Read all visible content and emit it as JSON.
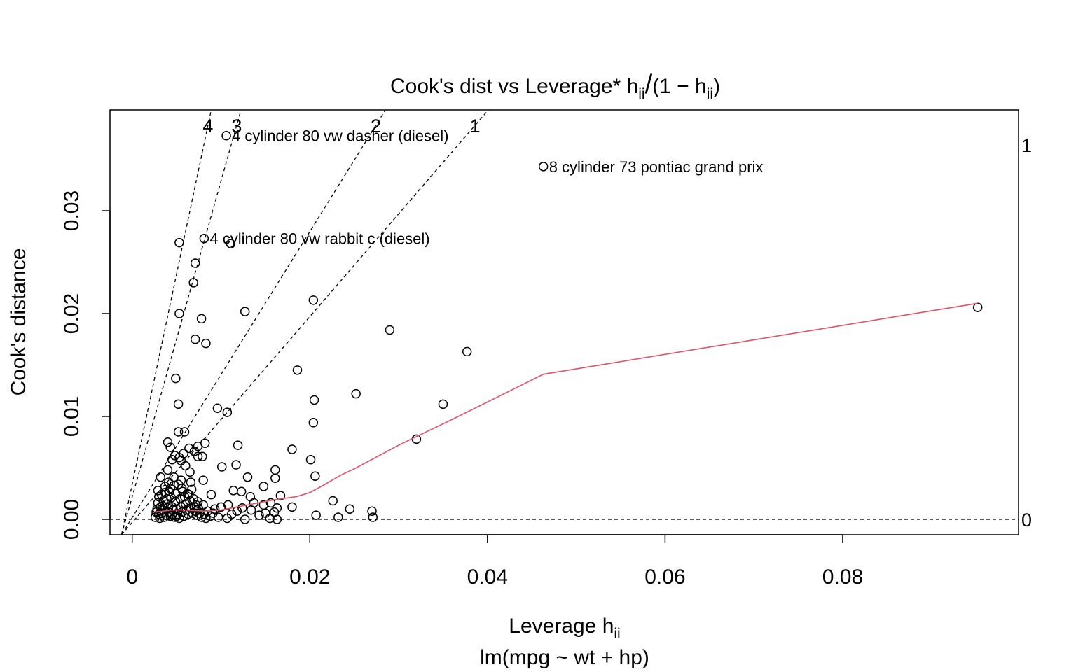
{
  "chart_data": {
    "type": "scatter",
    "title_main": "Cook's dist vs Leverage* ",
    "title_h": "h",
    "title_ii": "ii",
    "title_slash": "/",
    "title_paren_open": "(1 − h",
    "title_ii_2": "ii",
    "title_paren_close": ")",
    "xlabel_text": "Leverage  h",
    "xlabel_sub": "ii",
    "ylabel": "Cook's distance",
    "subtitle": "lm(mpg ~ wt + hp)",
    "xlim": [
      -0.0025,
      0.0998
    ],
    "ylim": [
      -0.0015,
      0.0398
    ],
    "x_ticks": [
      0,
      0.02,
      0.04,
      0.06,
      0.08
    ],
    "x_tick_labels": [
      "0",
      "0.02",
      "0.04",
      "0.06",
      "0.08"
    ],
    "y_ticks": [
      0.0,
      0.01,
      0.02,
      0.03
    ],
    "y_tick_labels": [
      "0.00",
      "0.01",
      "0.02",
      "0.03"
    ],
    "right_axis_labels": [
      {
        "label": "0",
        "y": 0.0
      },
      {
        "label": "1",
        "y": 0.0364
      }
    ],
    "contours": [
      {
        "label": "4",
        "slope": 4.09
      },
      {
        "label": "3",
        "slope": 3.07
      },
      {
        "label": "2",
        "slope": 1.39
      },
      {
        "label": "1",
        "slope": 1.0
      }
    ],
    "points": [
      [
        0.0106,
        0.0373
      ],
      [
        0.0463,
        0.0343
      ],
      [
        0.0081,
        0.0273
      ],
      [
        0.0053,
        0.0269
      ],
      [
        0.0111,
        0.0268
      ],
      [
        0.0071,
        0.0249
      ],
      [
        0.0069,
        0.023
      ],
      [
        0.0204,
        0.0213
      ],
      [
        0.0952,
        0.0206
      ],
      [
        0.0127,
        0.0202
      ],
      [
        0.0053,
        0.02
      ],
      [
        0.0078,
        0.0195
      ],
      [
        0.029,
        0.0184
      ],
      [
        0.0071,
        0.0175
      ],
      [
        0.0083,
        0.0171
      ],
      [
        0.0377,
        0.0163
      ],
      [
        0.0186,
        0.0145
      ],
      [
        0.0049,
        0.0137
      ],
      [
        0.0252,
        0.0122
      ],
      [
        0.0205,
        0.0116
      ],
      [
        0.0052,
        0.0112
      ],
      [
        0.035,
        0.0112
      ],
      [
        0.0096,
        0.0108
      ],
      [
        0.0107,
        0.0104
      ],
      [
        0.0204,
        0.0094
      ],
      [
        0.0052,
        0.0085
      ],
      [
        0.0059,
        0.0085
      ],
      [
        0.032,
        0.0078
      ],
      [
        0.004,
        0.0075
      ],
      [
        0.0082,
        0.0074
      ],
      [
        0.0074,
        0.0071
      ],
      [
        0.0119,
        0.0072
      ],
      [
        0.0043,
        0.007
      ],
      [
        0.0064,
        0.0069
      ],
      [
        0.018,
        0.0068
      ],
      [
        0.007,
        0.0066
      ],
      [
        0.0058,
        0.0064
      ],
      [
        0.0048,
        0.0062
      ],
      [
        0.0053,
        0.006
      ],
      [
        0.0074,
        0.0061
      ],
      [
        0.0079,
        0.0061
      ],
      [
        0.0201,
        0.0058
      ],
      [
        0.0045,
        0.0058
      ],
      [
        0.0055,
        0.0057
      ],
      [
        0.0117,
        0.0053
      ],
      [
        0.0101,
        0.0051
      ],
      [
        0.006,
        0.0052
      ],
      [
        0.004,
        0.0048
      ],
      [
        0.0161,
        0.0048
      ],
      [
        0.0065,
        0.0046
      ],
      [
        0.0206,
        0.0042
      ],
      [
        0.0161,
        0.004
      ],
      [
        0.013,
        0.0041
      ],
      [
        0.0032,
        0.0041
      ],
      [
        0.0047,
        0.0041
      ],
      [
        0.0055,
        0.0038
      ],
      [
        0.008,
        0.0038
      ],
      [
        0.0066,
        0.0036
      ],
      [
        0.0041,
        0.0036
      ],
      [
        0.0148,
        0.0032
      ],
      [
        0.0037,
        0.0032
      ],
      [
        0.0043,
        0.003
      ],
      [
        0.0056,
        0.003
      ],
      [
        0.0114,
        0.0028
      ],
      [
        0.0123,
        0.0027
      ],
      [
        0.0029,
        0.0028
      ],
      [
        0.0133,
        0.0022
      ],
      [
        0.0167,
        0.0023
      ],
      [
        0.0089,
        0.0024
      ],
      [
        0.0049,
        0.0025
      ],
      [
        0.0033,
        0.0024
      ],
      [
        0.0226,
        0.0018
      ],
      [
        0.0148,
        0.0014
      ],
      [
        0.0156,
        0.0016
      ],
      [
        0.018,
        0.0012
      ],
      [
        0.0108,
        0.0014
      ],
      [
        0.0163,
        0.0011
      ],
      [
        0.0245,
        0.001
      ],
      [
        0.027,
        0.0008
      ],
      [
        0.0093,
        0.001
      ],
      [
        0.0134,
        0.0009
      ],
      [
        0.0118,
        0.0008
      ],
      [
        0.016,
        0.0007
      ],
      [
        0.0207,
        0.0004
      ],
      [
        0.0143,
        0.0004
      ],
      [
        0.0232,
        0.0002
      ],
      [
        0.0271,
        0.0002
      ],
      [
        0.0155,
        0.0001
      ],
      [
        0.0127,
        0.0
      ],
      [
        0.0107,
        0.0001
      ],
      [
        0.0163,
        0.0
      ],
      [
        0.0097,
        0.0002
      ],
      [
        0.003,
        0.0022
      ],
      [
        0.0035,
        0.0018
      ],
      [
        0.004,
        0.0015
      ],
      [
        0.0045,
        0.0012
      ],
      [
        0.005,
        0.001
      ],
      [
        0.0055,
        0.0012
      ],
      [
        0.006,
        0.0015
      ],
      [
        0.0065,
        0.0018
      ],
      [
        0.007,
        0.0012
      ],
      [
        0.0075,
        0.001
      ],
      [
        0.008,
        0.0014
      ],
      [
        0.0085,
        0.0008
      ],
      [
        0.0028,
        0.001
      ],
      [
        0.0033,
        0.0006
      ],
      [
        0.0038,
        0.0004
      ],
      [
        0.0043,
        0.0003
      ],
      [
        0.0048,
        0.0002
      ],
      [
        0.0053,
        0.0001
      ],
      [
        0.0058,
        0.0003
      ],
      [
        0.0063,
        0.0005
      ],
      [
        0.0068,
        0.0006
      ],
      [
        0.0073,
        0.0004
      ],
      [
        0.0078,
        0.0002
      ],
      [
        0.0083,
        0.0001
      ],
      [
        0.0088,
        0.0003
      ],
      [
        0.0026,
        0.0002
      ],
      [
        0.0031,
        0.0001
      ],
      [
        0.0036,
        0.0002
      ],
      [
        0.0041,
        0.0007
      ],
      [
        0.0046,
        0.0009
      ],
      [
        0.0051,
        0.0005
      ],
      [
        0.0056,
        0.0007
      ],
      [
        0.0061,
        0.0009
      ],
      [
        0.0066,
        0.0011
      ],
      [
        0.0071,
        0.0008
      ],
      [
        0.0076,
        0.0006
      ],
      [
        0.0081,
        0.0005
      ],
      [
        0.0091,
        0.0006
      ],
      [
        0.0029,
        0.0016
      ],
      [
        0.0034,
        0.0013
      ],
      [
        0.0039,
        0.002
      ],
      [
        0.0044,
        0.0021
      ],
      [
        0.0049,
        0.0017
      ],
      [
        0.0054,
        0.002
      ],
      [
        0.0059,
        0.0022
      ],
      [
        0.0064,
        0.0024
      ],
      [
        0.0069,
        0.002
      ],
      [
        0.0074,
        0.0017
      ],
      [
        0.003,
        0.0005
      ],
      [
        0.0035,
        0.0009
      ],
      [
        0.004,
        0.0011
      ],
      [
        0.0045,
        0.0005
      ],
      [
        0.005,
        0.0003
      ],
      [
        0.0027,
        0.0007
      ],
      [
        0.0032,
        0.0012
      ],
      [
        0.0037,
        0.0026
      ],
      [
        0.0042,
        0.0027
      ],
      [
        0.0047,
        0.0033
      ],
      [
        0.0052,
        0.0034
      ],
      [
        0.0057,
        0.0027
      ],
      [
        0.0062,
        0.0025
      ],
      [
        0.0067,
        0.0029
      ],
      [
        0.0072,
        0.0014
      ],
      [
        0.01,
        0.0012
      ],
      [
        0.0112,
        0.0005
      ],
      [
        0.0124,
        0.0011
      ],
      [
        0.0137,
        0.0016
      ],
      [
        0.015,
        0.0006
      ]
    ],
    "labeled_points": [
      {
        "x": 0.0106,
        "y": 0.0373,
        "label": "4 cylinder 80 vw dasher (diesel)"
      },
      {
        "x": 0.0463,
        "y": 0.0343,
        "label": "8 cylinder 73 pontiac grand prix"
      },
      {
        "x": 0.0081,
        "y": 0.0273,
        "label": "4 cylinder 80 vw rabbit c (diesel)"
      }
    ],
    "smooth_line": [
      [
        0.0025,
        0.0007
      ],
      [
        0.0045,
        0.0009
      ],
      [
        0.006,
        0.0009
      ],
      [
        0.008,
        0.0008
      ],
      [
        0.01,
        0.0009
      ],
      [
        0.013,
        0.0014
      ],
      [
        0.016,
        0.0019
      ],
      [
        0.0185,
        0.0022
      ],
      [
        0.02,
        0.0026
      ],
      [
        0.0215,
        0.0033
      ],
      [
        0.0235,
        0.0043
      ],
      [
        0.025,
        0.0049
      ],
      [
        0.03,
        0.0072
      ],
      [
        0.036,
        0.0097
      ],
      [
        0.04,
        0.0114
      ],
      [
        0.0463,
        0.0141
      ],
      [
        0.0952,
        0.021
      ]
    ],
    "smooth_color": "#DF536B",
    "grid": false
  }
}
